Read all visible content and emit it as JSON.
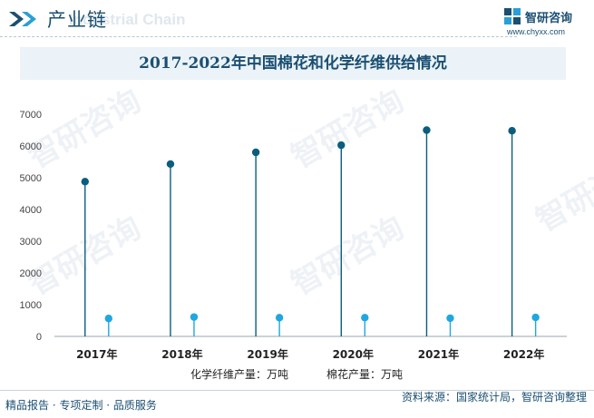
{
  "header": {
    "section_title": "产业链",
    "watermark_text": "Industrial Chain",
    "brand_name": "智研咨询",
    "brand_url": "www.chyxx.com"
  },
  "chart_data": {
    "type": "lollipop",
    "title": "2017-2022年中国棉花和化学纤维供给情况",
    "categories": [
      "2017年",
      "2018年",
      "2019年",
      "2020年",
      "2021年",
      "2022年"
    ],
    "ylim": [
      0,
      7000
    ],
    "yticks": [
      0,
      1000,
      2000,
      3000,
      4000,
      5000,
      6000,
      7000
    ],
    "grid": false,
    "legend_position": "bottom",
    "series": [
      {
        "name": "化学纤维产量：万吨",
        "color": "#0b5d7e",
        "values": [
          4877,
          5430,
          5800,
          6025,
          6500,
          6480
        ]
      },
      {
        "name": "棉花产量：万吨",
        "color": "#20a7df",
        "values": [
          565,
          610,
          589,
          591,
          573,
          598
        ]
      }
    ]
  },
  "watermark": {
    "text": "智研咨询"
  },
  "footer": {
    "left_text": "精品报告 · 专项定制 · 品质服务",
    "source_text": "资料来源：国家统计局，智研咨询整理"
  }
}
